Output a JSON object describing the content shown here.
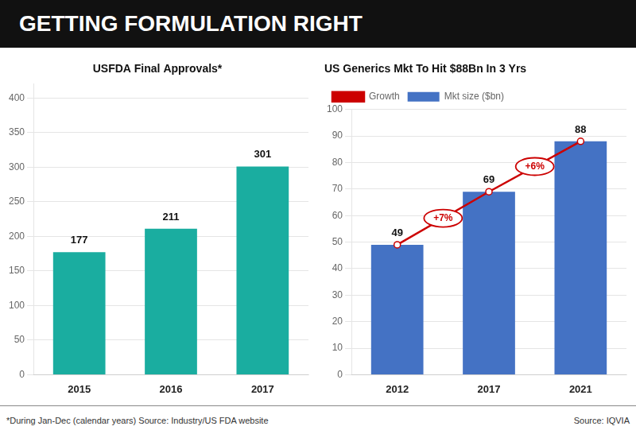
{
  "title": "GETTING FORMULATION RIGHT",
  "footnotes": [
    "*During Jan-Dec (calendar years)  Source: Industry/US FDA website",
    "Source: IQVIA"
  ],
  "chart_data": [
    {
      "type": "bar",
      "title": "USFDA Final Approvals*",
      "categories": [
        "2015",
        "2016",
        "2017"
      ],
      "values": [
        177,
        211,
        301
      ],
      "color": "#1aada0",
      "ylim": [
        0,
        420
      ],
      "yticks": [
        0,
        50,
        100,
        150,
        200,
        250,
        300,
        350,
        400
      ],
      "grid": true,
      "data_labels": true
    },
    {
      "type": "bar",
      "title": "US Generics Mkt To Hit $88Bn In 3 Yrs",
      "categories": [
        "2012",
        "2017",
        "2021"
      ],
      "series": [
        {
          "name": "Growth",
          "type": "line",
          "color": "#cc0000",
          "marker": "circle",
          "values": [
            49,
            69,
            88
          ]
        },
        {
          "name": "Mkt size ($bn)",
          "type": "bar",
          "color": "#4472c4",
          "values": [
            49,
            69,
            88
          ],
          "data_labels": true
        }
      ],
      "annotations": [
        "+7%",
        "+6%"
      ],
      "ylim": [
        0,
        100
      ],
      "yticks": [
        0,
        10,
        20,
        30,
        40,
        50,
        60,
        70,
        80,
        90,
        100
      ],
      "grid": true,
      "legend": "upper left"
    }
  ]
}
